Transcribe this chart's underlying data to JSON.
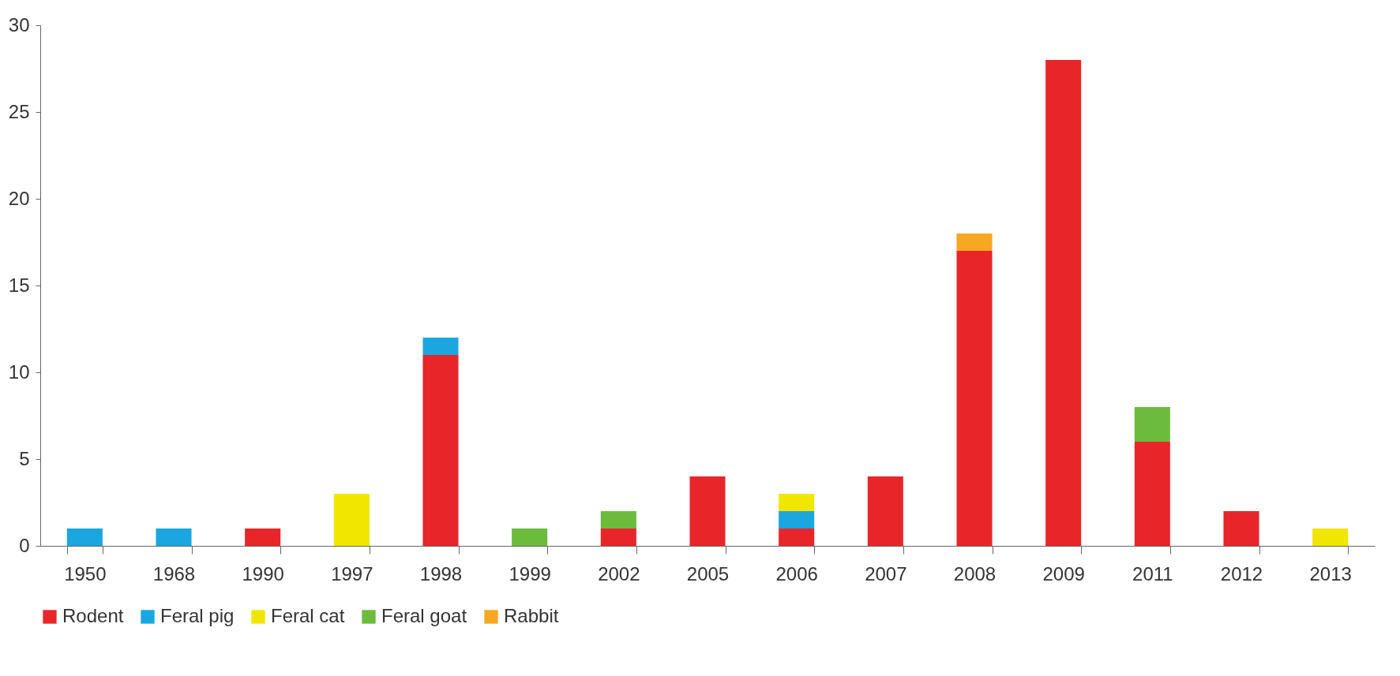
{
  "chart_data": {
    "type": "bar",
    "stacked": true,
    "categories": [
      "1950",
      "1968",
      "1990",
      "1997",
      "1998",
      "1999",
      "2002",
      "2005",
      "2006",
      "2007",
      "2008",
      "2009",
      "2011",
      "2012",
      "2013"
    ],
    "series": [
      {
        "name": "Rodent",
        "color": "#e8262a",
        "values": [
          null,
          null,
          1,
          null,
          11,
          null,
          1,
          4,
          1,
          4,
          17,
          28,
          6,
          2,
          null
        ]
      },
      {
        "name": "Feral pig",
        "color": "#1aa7e0",
        "values": [
          1,
          1,
          null,
          null,
          1,
          null,
          null,
          null,
          1,
          null,
          null,
          null,
          null,
          null,
          null
        ]
      },
      {
        "name": "Feral cat",
        "color": "#f0e600",
        "values": [
          null,
          null,
          null,
          3,
          null,
          null,
          null,
          null,
          1,
          null,
          null,
          null,
          null,
          null,
          1
        ]
      },
      {
        "name": "Feral goat",
        "color": "#6cbb3c",
        "values": [
          null,
          null,
          null,
          null,
          null,
          1,
          1,
          null,
          null,
          null,
          null,
          null,
          2,
          null,
          null
        ]
      },
      {
        "name": "Rabbit",
        "color": "#f7a823",
        "values": [
          null,
          null,
          null,
          null,
          null,
          null,
          null,
          null,
          null,
          null,
          1,
          null,
          null,
          null,
          null
        ]
      }
    ],
    "ylim": [
      0,
      30
    ],
    "yticks": [
      0,
      5,
      10,
      15,
      20,
      25,
      30
    ],
    "grid": false,
    "legend": "bottom"
  }
}
